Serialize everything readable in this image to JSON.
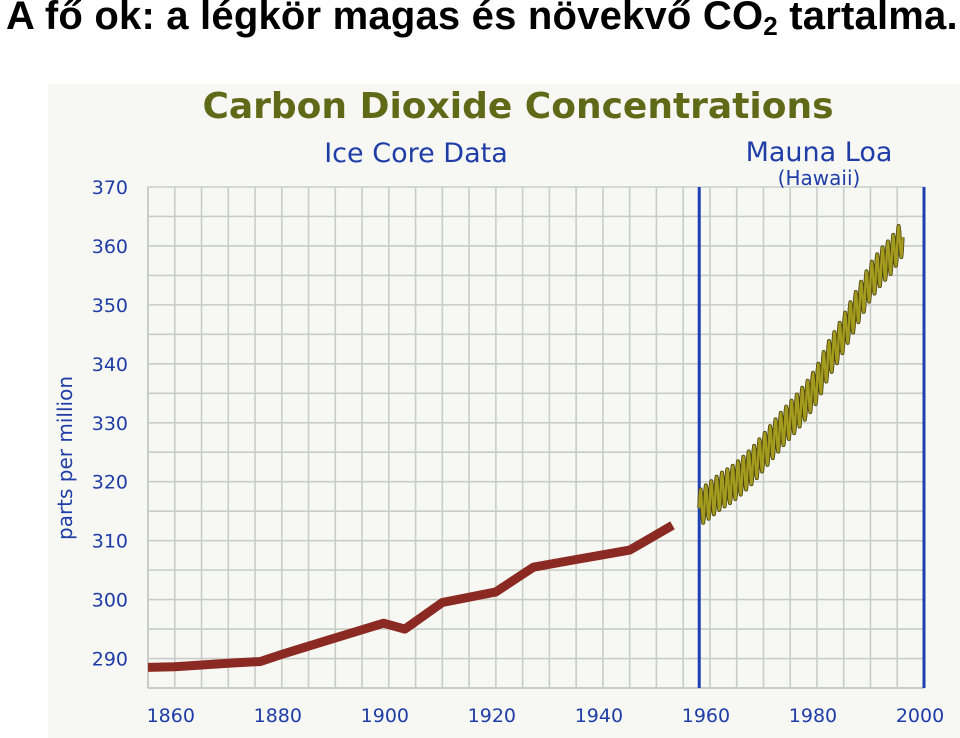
{
  "slide": {
    "title_main": "A fő ok: a légkör magas és növekvő CO",
    "title_sub": "2",
    "title_tail": " tartalma."
  },
  "colors": {
    "ice_core": "#8b2a22",
    "mauna_loa": "#a39a1e",
    "axis_text": "#1f3da6",
    "title_text": "#5f6a18",
    "grid": "#c9ccc8"
  },
  "chart_data": {
    "type": "line",
    "title": "Carbon Dioxide Concentrations",
    "annotations": [
      "Ice Core Data",
      "Mauna Loa",
      "(Hawaii)"
    ],
    "ylabel": "parts per million",
    "xlabel": "",
    "xlim": [
      1855,
      2000
    ],
    "ylim": [
      285,
      370
    ],
    "x_ticks": [
      "1860",
      "1880",
      "1900",
      "1920",
      "1940",
      "1960",
      "1980",
      "2000"
    ],
    "y_ticks": [
      "290",
      "300",
      "310",
      "320",
      "330",
      "340",
      "350",
      "360",
      "370"
    ],
    "grid": true,
    "separators_x": [
      1958,
      2000
    ],
    "series": [
      {
        "key": "ice_core",
        "x": [
          1855,
          1860,
          1870,
          1876,
          1880,
          1890,
          1899,
          1903,
          1910,
          1920,
          1927,
          1935,
          1940,
          1945,
          1953
        ],
        "values": [
          288.5,
          288.6,
          289.2,
          289.5,
          290.7,
          293.5,
          296.0,
          295.0,
          299.5,
          301.3,
          305.5,
          306.8,
          307.6,
          308.4,
          312.6
        ]
      },
      {
        "key": "mauna_loa",
        "x": [
          1958,
          1960,
          1962,
          1964,
          1966,
          1968,
          1970,
          1972,
          1974,
          1976,
          1978,
          1980,
          1982,
          1984,
          1986,
          1988,
          1990,
          1992,
          1994,
          1996
        ],
        "values": [
          315.5,
          316.9,
          318.4,
          319.5,
          321.0,
          322.8,
          325.0,
          327.3,
          329.5,
          331.5,
          333.8,
          336.5,
          340.5,
          343.5,
          347.0,
          350.5,
          354.0,
          356.5,
          358.5,
          361.5
        ],
        "seasonal_amplitude": 3
      }
    ]
  }
}
